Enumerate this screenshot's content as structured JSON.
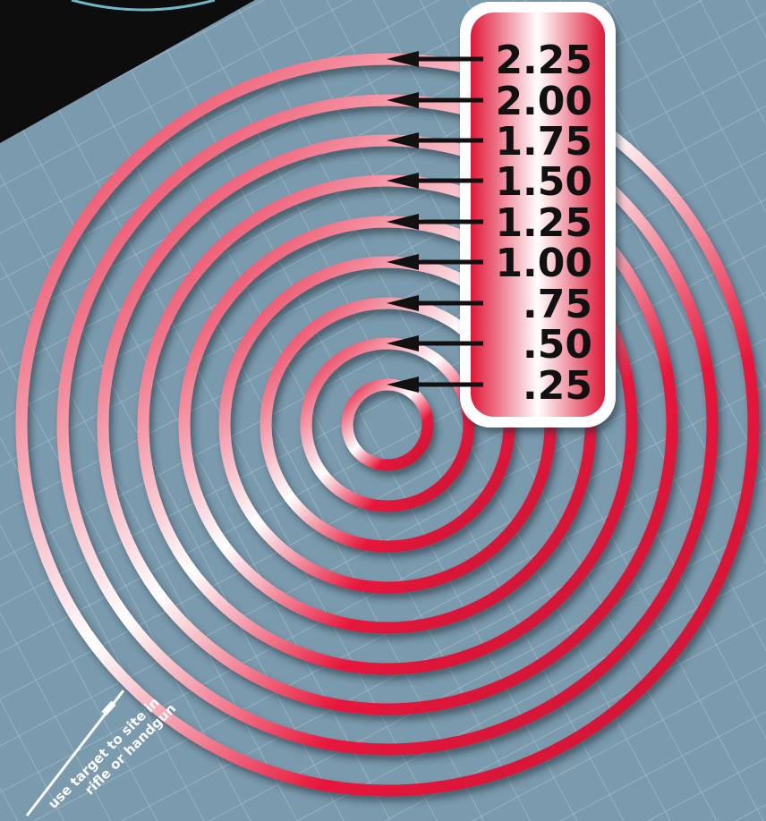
{
  "target": {
    "ring_labels": [
      "2.25",
      "2.00",
      "1.75",
      "1.50",
      "1.25",
      "1.00",
      ".75",
      ".50",
      ".25"
    ],
    "ring_color": "#e8193c",
    "ring_highlight": "#ffffff",
    "background_color": "#7a9aad",
    "grid_color": "#c4d6e2"
  },
  "note": {
    "line1": "use target to site in",
    "line2": "rifle or handgun"
  }
}
